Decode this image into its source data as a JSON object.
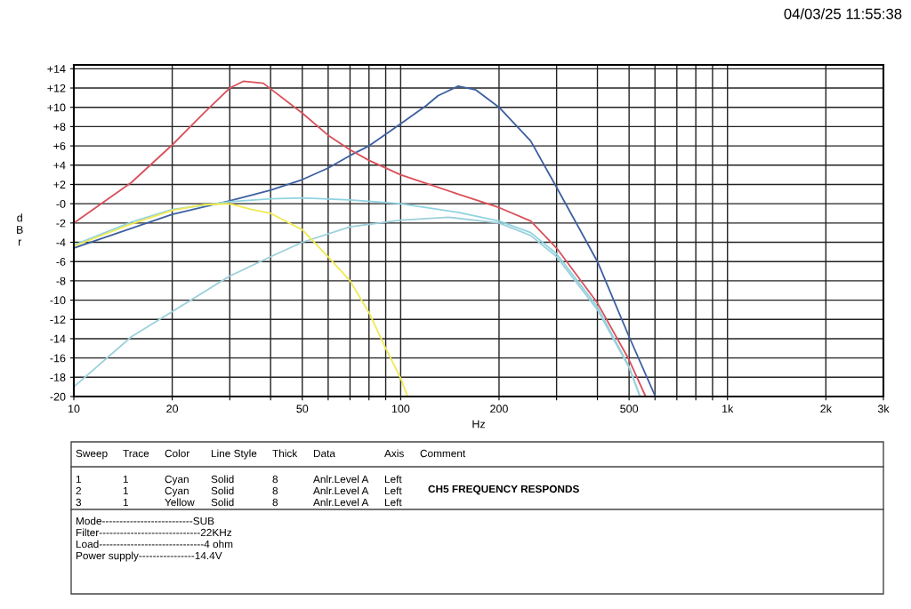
{
  "chart_data": {
    "type": "line",
    "xlabel": "Hz",
    "ylabel": "d\nB\nr",
    "log": "x",
    "grid": true,
    "legend": false,
    "marker": "none",
    "line_style": "solid",
    "xlim": [
      10,
      3000
    ],
    "xticks": [
      10,
      20,
      {
        "value": 30,
        "label": null
      },
      {
        "value": 40,
        "label": null
      },
      50,
      {
        "value": 60,
        "label": null
      },
      {
        "value": 70,
        "label": null
      },
      {
        "value": 80,
        "label": null
      },
      {
        "value": 90,
        "label": null
      },
      100,
      200,
      {
        "value": 300,
        "label": null
      },
      {
        "value": 400,
        "label": null
      },
      500,
      {
        "value": 600,
        "label": null
      },
      {
        "value": 700,
        "label": null
      },
      {
        "value": 800,
        "label": null
      },
      {
        "value": 900,
        "label": null
      },
      {
        "value": 1000,
        "label": "1k"
      },
      {
        "value": 2000,
        "label": "2k"
      },
      {
        "value": 3000,
        "label": "3k"
      }
    ],
    "ylim": [
      -20,
      14.4
    ],
    "yticks": [
      {
        "value": 14,
        "label": "+14"
      },
      {
        "value": 12,
        "label": "+12"
      },
      {
        "value": 10,
        "label": "+10"
      },
      {
        "value": 8,
        "label": "+8"
      },
      {
        "value": 6,
        "label": "+6"
      },
      {
        "value": 4,
        "label": "+4"
      },
      {
        "value": 2,
        "label": "+2"
      },
      {
        "value": 0,
        "label": "-0"
      },
      {
        "value": -2,
        "label": "-2"
      },
      {
        "value": -4,
        "label": "-4"
      },
      {
        "value": -6,
        "label": "-6"
      },
      {
        "value": -8,
        "label": "-8"
      },
      {
        "value": -10,
        "label": "-10"
      },
      {
        "value": -12,
        "label": "-12"
      },
      {
        "value": -14,
        "label": "-14"
      },
      {
        "value": -16,
        "label": "-16"
      },
      {
        "value": -18,
        "label": "-18"
      },
      {
        "value": -20,
        "label": "-20"
      }
    ],
    "series": [
      {
        "color": "#3d5fa0",
        "x": [
          10,
          20,
          30,
          40,
          50,
          60,
          70,
          80,
          90,
          100,
          120,
          130,
          150,
          170,
          200,
          250,
          300,
          400,
          500,
          600
        ],
        "values": [
          -4.6,
          -1.1,
          0.3,
          1.4,
          2.5,
          3.7,
          5.0,
          6.0,
          7.2,
          8.3,
          10.2,
          11.2,
          12.2,
          11.8,
          10.0,
          6.5,
          1.7,
          -6.0,
          -13.8,
          -19.9
        ]
      },
      {
        "color": "#d9505a",
        "x": [
          10,
          15,
          20,
          25,
          30,
          33,
          38,
          50,
          60,
          70,
          80,
          100,
          120,
          150,
          200,
          250,
          300,
          400,
          500,
          560
        ],
        "values": [
          -2.0,
          2.2,
          6.1,
          9.4,
          12.0,
          12.7,
          12.5,
          9.4,
          7.1,
          5.6,
          4.5,
          3.0,
          2.1,
          1.0,
          -0.4,
          -1.8,
          -4.6,
          -10.3,
          -16.2,
          -19.9
        ]
      },
      {
        "color": "#8fd3e0",
        "x": [
          10,
          15,
          20,
          30,
          40,
          50,
          70,
          100,
          150,
          200,
          250,
          300,
          400,
          500,
          540
        ],
        "values": [
          -4.3,
          -1.9,
          -0.6,
          0.2,
          0.5,
          0.6,
          0.4,
          0.0,
          -0.9,
          -1.8,
          -3.0,
          -5.2,
          -10.7,
          -16.9,
          -20.0
        ]
      },
      {
        "color": "#9cd0dc",
        "x": [
          10,
          15,
          20,
          30,
          40,
          50,
          70,
          100,
          140,
          200,
          250,
          300,
          400,
          500,
          540
        ],
        "values": [
          -19.0,
          -13.8,
          -11.2,
          -7.5,
          -5.5,
          -4.0,
          -2.4,
          -1.7,
          -1.4,
          -2.0,
          -3.3,
          -5.5,
          -11.0,
          -17.0,
          -20.0
        ]
      },
      {
        "color": "#f0ea50",
        "x": [
          10,
          15,
          20,
          25,
          30,
          35,
          40,
          50,
          60,
          70,
          80,
          90,
          100,
          105
        ],
        "values": [
          -4.4,
          -2.1,
          -0.7,
          -0.1,
          0.0,
          -0.6,
          -1.0,
          -2.7,
          -5.5,
          -8.0,
          -11.3,
          -15.0,
          -18.1,
          -20.0
        ]
      }
    ],
    "annotations": [
      "04/03/25 11:55:38",
      "Sweep",
      "Trace",
      "Color",
      "Line Style",
      "Thick",
      "Data",
      "Axis",
      "Comment",
      "1",
      "1",
      "Cyan",
      "Solid",
      "8",
      "Anlr.Level A",
      "Left",
      "2",
      "1",
      "Cyan",
      "Solid",
      "8",
      "Anlr.Level A",
      "Left",
      "3",
      "1",
      "Yellow",
      "Solid",
      "8",
      "Anlr.Level A",
      "Left",
      "CH5 FREQUENCY RESPONDS",
      "Mode--------------------------SUB",
      "Filter-----------------------------22KHz",
      "Load------------------------------4 ohm",
      "Power supply----------------14.4V"
    ]
  }
}
